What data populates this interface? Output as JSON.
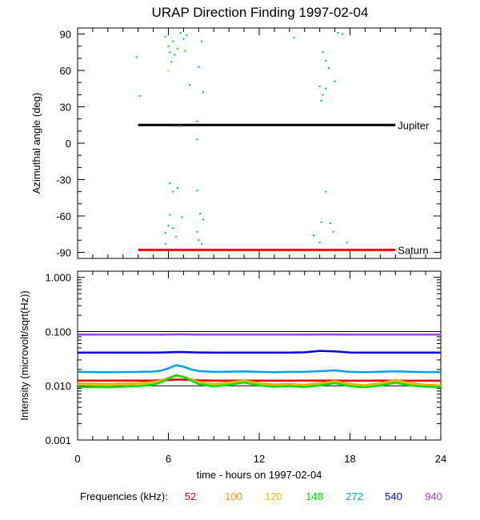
{
  "title": "URAP Direction Finding  1997-02-04",
  "chart_data": [
    {
      "type": "scatter",
      "panel": "azimuth",
      "ylabel": "Azimuthal angle (deg)",
      "xlim": [
        0,
        24
      ],
      "ylim": [
        -95,
        95
      ],
      "yticks": [
        90,
        60,
        30,
        0,
        -30,
        -60,
        -90
      ],
      "ytick_labels": [
        "90",
        "60",
        "30",
        "0",
        "-30",
        "-60",
        "-90"
      ],
      "reference_lines": [
        {
          "name": "Jupiter",
          "label": "Jupiter",
          "y": 15,
          "x_start": 4.0,
          "x_end": 21.0,
          "color": "#000000"
        },
        {
          "name": "Saturn",
          "label": "Saturn",
          "y": -88,
          "x_start": 4.0,
          "x_end": 21.0,
          "color": "#ff0000"
        }
      ],
      "points": [
        {
          "x": 3.9,
          "y": 71,
          "freq": 272
        },
        {
          "x": 4.1,
          "y": 39,
          "freq": 272
        },
        {
          "x": 5.8,
          "y": 88,
          "freq": 148
        },
        {
          "x": 6.0,
          "y": 80,
          "freq": 148
        },
        {
          "x": 6.1,
          "y": 75,
          "freq": 272
        },
        {
          "x": 6.3,
          "y": 84,
          "freq": 148
        },
        {
          "x": 6.4,
          "y": 73,
          "freq": 272
        },
        {
          "x": 6.6,
          "y": 78,
          "freq": 148
        },
        {
          "x": 6.8,
          "y": 91,
          "freq": 148
        },
        {
          "x": 7.0,
          "y": 86,
          "freq": 272
        },
        {
          "x": 7.2,
          "y": 89,
          "freq": 148
        },
        {
          "x": 7.1,
          "y": 76,
          "freq": 148
        },
        {
          "x": 6.2,
          "y": 67,
          "freq": 272
        },
        {
          "x": 6.0,
          "y": 60,
          "freq": 120
        },
        {
          "x": 7.4,
          "y": 48,
          "freq": 272
        },
        {
          "x": 8.0,
          "y": 63,
          "freq": 272
        },
        {
          "x": 8.2,
          "y": 84,
          "freq": 272
        },
        {
          "x": 8.3,
          "y": 42,
          "freq": 272
        },
        {
          "x": 7.9,
          "y": 18,
          "freq": 272
        },
        {
          "x": 7.9,
          "y": 3,
          "freq": 272
        },
        {
          "x": 6.7,
          "y": 14,
          "freq": 272
        },
        {
          "x": 6.1,
          "y": -33,
          "freq": 272
        },
        {
          "x": 6.3,
          "y": -40,
          "freq": 272
        },
        {
          "x": 6.6,
          "y": -37,
          "freq": 272
        },
        {
          "x": 6.1,
          "y": -59,
          "freq": 272
        },
        {
          "x": 6.0,
          "y": -68,
          "freq": 272
        },
        {
          "x": 6.3,
          "y": -70,
          "freq": 272
        },
        {
          "x": 5.8,
          "y": -74,
          "freq": 272
        },
        {
          "x": 6.5,
          "y": -77,
          "freq": 148
        },
        {
          "x": 6.9,
          "y": -61,
          "freq": 272
        },
        {
          "x": 7.9,
          "y": -39,
          "freq": 272
        },
        {
          "x": 8.1,
          "y": -58,
          "freq": 272
        },
        {
          "x": 8.3,
          "y": -63,
          "freq": 272
        },
        {
          "x": 7.9,
          "y": -73,
          "freq": 272
        },
        {
          "x": 8.0,
          "y": -80,
          "freq": 272
        },
        {
          "x": 8.2,
          "y": -83,
          "freq": 272
        },
        {
          "x": 5.8,
          "y": -83,
          "freq": 272
        },
        {
          "x": 14.3,
          "y": 87,
          "freq": 272
        },
        {
          "x": 16.2,
          "y": 75,
          "freq": 272
        },
        {
          "x": 16.4,
          "y": 68,
          "freq": 272
        },
        {
          "x": 16.6,
          "y": 62,
          "freq": 272
        },
        {
          "x": 16.0,
          "y": 47,
          "freq": 272
        },
        {
          "x": 16.4,
          "y": 45,
          "freq": 272
        },
        {
          "x": 16.2,
          "y": 40,
          "freq": 272
        },
        {
          "x": 16.1,
          "y": 35,
          "freq": 272
        },
        {
          "x": 17.0,
          "y": 51,
          "freq": 272
        },
        {
          "x": 17.2,
          "y": 91,
          "freq": 272
        },
        {
          "x": 17.5,
          "y": 90,
          "freq": 272
        },
        {
          "x": 16.4,
          "y": -40,
          "freq": 272
        },
        {
          "x": 16.1,
          "y": -65,
          "freq": 272
        },
        {
          "x": 16.7,
          "y": -66,
          "freq": 272
        },
        {
          "x": 16.9,
          "y": -73,
          "freq": 272
        },
        {
          "x": 15.6,
          "y": -76,
          "freq": 272
        },
        {
          "x": 16.0,
          "y": -82,
          "freq": 272
        },
        {
          "x": 17.8,
          "y": -82,
          "freq": 272
        }
      ]
    },
    {
      "type": "line",
      "panel": "intensity",
      "ylabel": "Intensity (microvolt/sqrt(Hz))",
      "xlabel": "time - hours on 1997-02-04",
      "xlim": [
        0,
        24
      ],
      "xticks": [
        0,
        6,
        12,
        18,
        24
      ],
      "xtick_labels": [
        "0",
        "6",
        "12",
        "18",
        "24"
      ],
      "ylim": [
        0.001,
        1.3
      ],
      "yscale": "log",
      "yticks": [
        1.0,
        0.1,
        0.01,
        0.001
      ],
      "ytick_labels": [
        "1.000",
        "0.100",
        "0.010",
        "0.001"
      ],
      "x": [
        0,
        2,
        4,
        5,
        5.5,
        6,
        6.5,
        7,
        7.5,
        8,
        9,
        10,
        11,
        12,
        13,
        14,
        15,
        16,
        17,
        18,
        19,
        20,
        21,
        22,
        23,
        24
      ],
      "series": [
        {
          "name": "52",
          "color": "#e00000",
          "values": [
            0.0125,
            0.0125,
            0.0125,
            0.0125,
            0.0126,
            0.0128,
            0.013,
            0.013,
            0.0128,
            0.0126,
            0.0125,
            0.0125,
            0.0125,
            0.0125,
            0.0124,
            0.0124,
            0.0125,
            0.0125,
            0.0125,
            0.0124,
            0.0124,
            0.0125,
            0.0125,
            0.0124,
            0.0124,
            0.0124
          ]
        },
        {
          "name": "100",
          "color": "#ff9900",
          "values": [
            0.011,
            0.0108,
            0.0112,
            0.0118,
            0.0125,
            0.014,
            0.0158,
            0.0148,
            0.0132,
            0.0118,
            0.0108,
            0.0116,
            0.0125,
            0.0112,
            0.0105,
            0.0108,
            0.0104,
            0.0112,
            0.0122,
            0.0108,
            0.0102,
            0.0112,
            0.0128,
            0.0112,
            0.0104,
            0.0102
          ]
        },
        {
          "name": "120",
          "color": "#e6c000",
          "values": [
            0.0105,
            0.0103,
            0.0108,
            0.0115,
            0.0122,
            0.0138,
            0.0155,
            0.0145,
            0.013,
            0.0115,
            0.0105,
            0.0112,
            0.012,
            0.0108,
            0.0102,
            0.0104,
            0.0101,
            0.0108,
            0.0118,
            0.0104,
            0.0099,
            0.0108,
            0.0122,
            0.0108,
            0.0101,
            0.0099
          ]
        },
        {
          "name": "148",
          "color": "#00e000",
          "values": [
            0.0095,
            0.0094,
            0.0098,
            0.0105,
            0.0115,
            0.0135,
            0.0155,
            0.0145,
            0.0125,
            0.0108,
            0.0097,
            0.0104,
            0.0115,
            0.0101,
            0.0096,
            0.0098,
            0.0095,
            0.0101,
            0.0112,
            0.0098,
            0.0094,
            0.0101,
            0.0114,
            0.0101,
            0.0096,
            0.0095
          ]
        },
        {
          "name": "272",
          "color": "#00a0e6",
          "values": [
            0.018,
            0.0178,
            0.018,
            0.0183,
            0.019,
            0.021,
            0.024,
            0.0225,
            0.02,
            0.0188,
            0.018,
            0.0182,
            0.0184,
            0.018,
            0.0178,
            0.018,
            0.0181,
            0.0186,
            0.0192,
            0.018,
            0.0178,
            0.0181,
            0.0185,
            0.0181,
            0.0179,
            0.0179
          ]
        },
        {
          "name": "540",
          "color": "#0000e0",
          "values": [
            0.041,
            0.041,
            0.041,
            0.041,
            0.0412,
            0.0415,
            0.042,
            0.0418,
            0.0414,
            0.0412,
            0.041,
            0.041,
            0.041,
            0.041,
            0.041,
            0.041,
            0.0415,
            0.044,
            0.0432,
            0.0412,
            0.041,
            0.041,
            0.041,
            0.041,
            0.041,
            0.041
          ]
        },
        {
          "name": "940",
          "color": "#a040e0",
          "values": [
            0.088,
            0.088,
            0.088,
            0.088,
            0.0882,
            0.0885,
            0.0888,
            0.0886,
            0.0884,
            0.0882,
            0.088,
            0.088,
            0.088,
            0.088,
            0.088,
            0.088,
            0.0881,
            0.0885,
            0.0884,
            0.0881,
            0.088,
            0.088,
            0.088,
            0.088,
            0.088,
            0.088
          ]
        }
      ]
    }
  ],
  "legend": {
    "title": "Frequencies (kHz):",
    "items": [
      {
        "label": "52",
        "color": "#e00000"
      },
      {
        "label": "100",
        "color": "#ff9900"
      },
      {
        "label": "120",
        "color": "#e6c000"
      },
      {
        "label": "148",
        "color": "#00e000"
      },
      {
        "label": "272",
        "color": "#00a0e6"
      },
      {
        "label": "540",
        "color": "#0000e0"
      },
      {
        "label": "940",
        "color": "#a040e0"
      }
    ]
  }
}
